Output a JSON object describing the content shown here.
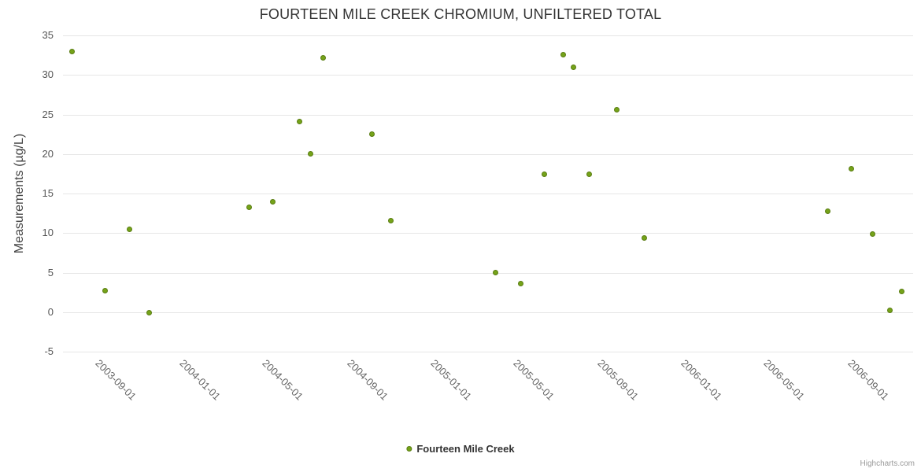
{
  "credits": {
    "text": "Highcharts.com"
  },
  "colors": {
    "point_fill": "#75a319",
    "point_border": "#5a7d13",
    "grid": "#e6e6e6",
    "title_text": "#333333",
    "axis_label": "#555555"
  },
  "chart_data": {
    "type": "scatter",
    "title": "FOURTEEN MILE CREEK CHROMIUM, UNFILTERED TOTAL",
    "xlabel": "",
    "ylabel": "Measurements (µg/L)",
    "ylim": [
      -5,
      35
    ],
    "xlim": [
      "2003-06-25",
      "2006-11-14"
    ],
    "grid": true,
    "legend_position": "bottom-center",
    "y_ticks": [
      35,
      30,
      25,
      20,
      15,
      10,
      5,
      0,
      -5
    ],
    "x_ticks": [
      "2003-09-01",
      "2004-01-01",
      "2004-05-01",
      "2004-09-01",
      "2005-01-01",
      "2005-05-01",
      "2005-09-01",
      "2006-01-01",
      "2006-05-01",
      "2006-09-01"
    ],
    "series": [
      {
        "name": "Fourteen Mile Creek",
        "color": "#75a319",
        "border_color": "#5a7d13",
        "points": [
          [
            "2003-07-08",
            33.0
          ],
          [
            "2003-08-25",
            2.7
          ],
          [
            "2003-09-30",
            10.5
          ],
          [
            "2003-10-29",
            -0.1
          ],
          [
            "2004-03-22",
            13.3
          ],
          [
            "2004-04-26",
            14.0
          ],
          [
            "2004-06-04",
            24.1
          ],
          [
            "2004-06-20",
            20.0
          ],
          [
            "2004-07-08",
            32.2
          ],
          [
            "2004-09-17",
            22.5
          ],
          [
            "2004-10-15",
            11.6
          ],
          [
            "2005-03-16",
            5.0
          ],
          [
            "2005-04-21",
            3.6
          ],
          [
            "2005-05-26",
            17.4
          ],
          [
            "2005-06-22",
            32.6
          ],
          [
            "2005-07-07",
            31.0
          ],
          [
            "2005-07-30",
            17.4
          ],
          [
            "2005-09-08",
            25.6
          ],
          [
            "2005-10-19",
            9.4
          ],
          [
            "2006-07-13",
            12.8
          ],
          [
            "2006-08-16",
            18.1
          ],
          [
            "2006-09-16",
            9.9
          ],
          [
            "2006-10-11",
            0.2
          ],
          [
            "2006-10-28",
            2.6
          ]
        ]
      }
    ]
  }
}
